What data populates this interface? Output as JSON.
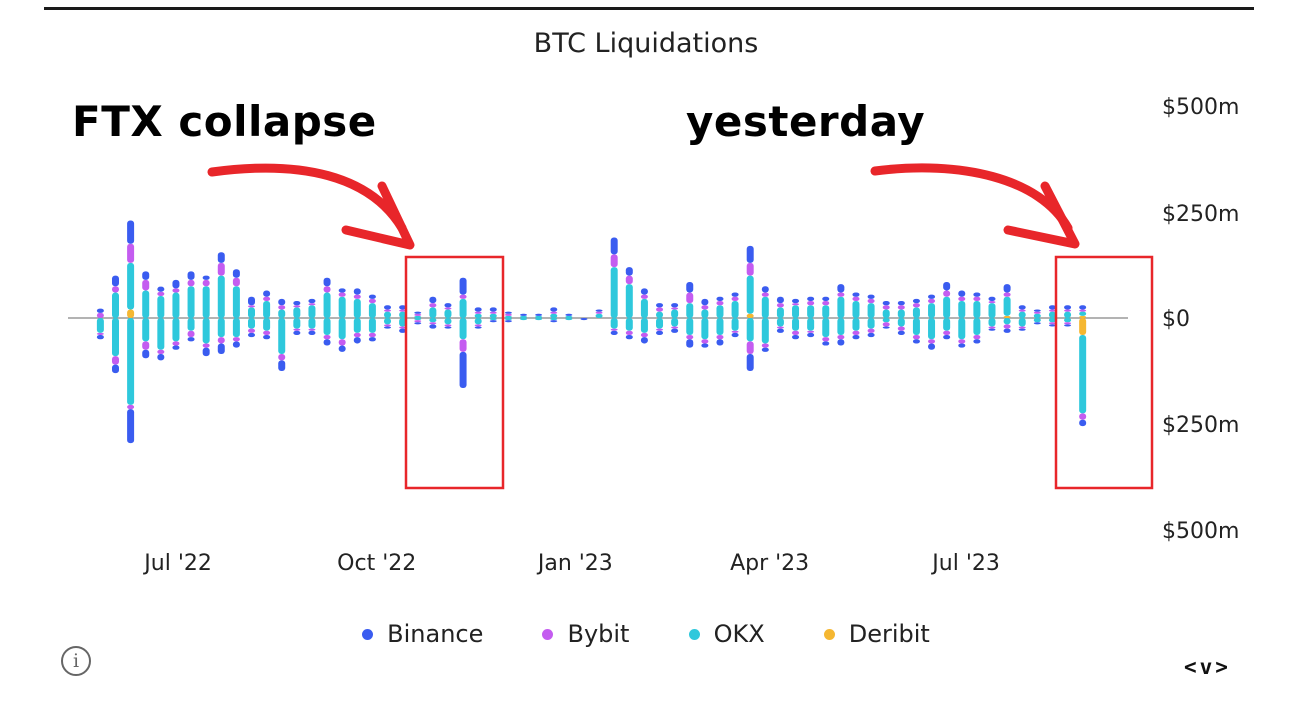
{
  "chart_data": {
    "type": "bar",
    "title": "BTC Liquidations",
    "y_tick_labels": [
      "$500m",
      "$250m",
      "$0",
      "$250m",
      "$500m"
    ],
    "y_ticks": [
      500,
      250,
      0,
      -250,
      -500
    ],
    "ylim": [
      -500,
      500
    ],
    "x_tick_labels": [
      "Jul '22",
      "Oct '22",
      "Jan '23",
      "Apr '23",
      "Jul '23"
    ],
    "x_tick_dates": [
      "2022-07-01",
      "2022-10-01",
      "2023-01-01",
      "2023-04-01",
      "2023-07-01"
    ],
    "xlim": [
      "2022-05-11",
      "2023-09-14"
    ],
    "grid": false,
    "legend_position": "bottom",
    "stacked": true,
    "series": [
      {
        "name": "Binance",
        "color": "#3a5cf0"
      },
      {
        "name": "Bybit",
        "color": "#c45cf0"
      },
      {
        "name": "OKX",
        "color": "#2ec8dc"
      },
      {
        "name": "Deribit",
        "color": "#f5b731"
      }
    ],
    "bars": [
      {
        "date": "2022-05-26",
        "long": [
          10,
          12,
          -5,
          0
        ],
        "short": [
          10,
          5,
          -35,
          0
        ]
      },
      {
        "date": "2022-06-02",
        "long": [
          25,
          15,
          60,
          0
        ],
        "short": [
          20,
          20,
          -90,
          0
        ]
      },
      {
        "date": "2022-06-09",
        "long": [
          55,
          45,
          110,
          20
        ],
        "short": [
          80,
          10,
          -205,
          0
        ]
      },
      {
        "date": "2022-06-16",
        "long": [
          20,
          25,
          65,
          0
        ],
        "short": [
          20,
          20,
          -55,
          0
        ]
      },
      {
        "date": "2022-06-23",
        "long": [
          12,
          10,
          52,
          0
        ],
        "short": [
          15,
          10,
          -75,
          0
        ]
      },
      {
        "date": "2022-06-30",
        "long": [
          20,
          10,
          60,
          0
        ],
        "short": [
          10,
          10,
          -55,
          0
        ]
      },
      {
        "date": "2022-07-07",
        "long": [
          20,
          15,
          75,
          0
        ],
        "short": [
          10,
          15,
          -30,
          0
        ]
      },
      {
        "date": "2022-07-14",
        "long": [
          10,
          15,
          75,
          0
        ],
        "short": [
          20,
          10,
          -60,
          0
        ]
      },
      {
        "date": "2022-07-21",
        "long": [
          25,
          30,
          100,
          0
        ],
        "short": [
          25,
          15,
          -45,
          0
        ]
      },
      {
        "date": "2022-07-28",
        "long": [
          20,
          20,
          75,
          0
        ],
        "short": [
          15,
          10,
          -45,
          0
        ]
      },
      {
        "date": "2022-08-04",
        "long": [
          20,
          5,
          25,
          0
        ],
        "short": [
          10,
          10,
          -25,
          0
        ]
      },
      {
        "date": "2022-08-11",
        "long": [
          15,
          10,
          40,
          0
        ],
        "short": [
          10,
          10,
          -30,
          0
        ]
      },
      {
        "date": "2022-08-18",
        "long": [
          15,
          10,
          20,
          0
        ],
        "short": [
          25,
          15,
          -85,
          0
        ]
      },
      {
        "date": "2022-08-25",
        "long": [
          10,
          5,
          25,
          0
        ],
        "short": [
          10,
          5,
          -25,
          0
        ]
      },
      {
        "date": "2022-09-01",
        "long": [
          10,
          5,
          30,
          0
        ],
        "short": [
          10,
          5,
          -25,
          0
        ]
      },
      {
        "date": "2022-09-08",
        "long": [
          20,
          15,
          60,
          0
        ],
        "short": [
          15,
          10,
          -40,
          0
        ]
      },
      {
        "date": "2022-09-15",
        "long": [
          10,
          10,
          50,
          0
        ],
        "short": [
          15,
          15,
          -50,
          0
        ]
      },
      {
        "date": "2022-09-22",
        "long": [
          15,
          10,
          45,
          0
        ],
        "short": [
          15,
          10,
          -35,
          0
        ]
      },
      {
        "date": "2022-09-29",
        "long": [
          10,
          10,
          35,
          0
        ],
        "short": [
          10,
          10,
          -35,
          0
        ]
      },
      {
        "date": "2022-10-06",
        "long": [
          10,
          5,
          15,
          0
        ],
        "short": [
          5,
          5,
          -15,
          0
        ]
      },
      {
        "date": "2022-10-13",
        "long": [
          10,
          5,
          15,
          0
        ],
        "short": [
          10,
          5,
          -20,
          0
        ]
      },
      {
        "date": "2022-10-20",
        "long": [
          5,
          5,
          5,
          0
        ],
        "short": [
          5,
          5,
          -5,
          0
        ]
      },
      {
        "date": "2022-10-27",
        "long": [
          15,
          10,
          25,
          0
        ],
        "short": [
          10,
          5,
          -10,
          0
        ]
      },
      {
        "date": "2022-11-03",
        "long": [
          10,
          5,
          20,
          0
        ],
        "short": [
          5,
          5,
          -15,
          0
        ]
      },
      {
        "date": "2022-11-10",
        "long": [
          40,
          10,
          45,
          0
        ],
        "short": [
          85,
          30,
          -50,
          0
        ]
      },
      {
        "date": "2022-11-17",
        "long": [
          10,
          5,
          10,
          0
        ],
        "short": [
          5,
          5,
          -15,
          0
        ]
      },
      {
        "date": "2022-11-24",
        "long": [
          10,
          5,
          10,
          0
        ],
        "short": [
          5,
          0,
          -5,
          0
        ]
      },
      {
        "date": "2022-12-01",
        "long": [
          5,
          5,
          5,
          0
        ],
        "short": [
          5,
          0,
          -5,
          0
        ]
      },
      {
        "date": "2022-12-08",
        "long": [
          5,
          0,
          5,
          0
        ],
        "short": [
          0,
          0,
          -5,
          0
        ]
      },
      {
        "date": "2022-12-15",
        "long": [
          5,
          0,
          5,
          0
        ],
        "short": [
          0,
          0,
          -5,
          0
        ]
      },
      {
        "date": "2022-12-22",
        "long": [
          10,
          5,
          10,
          0
        ],
        "short": [
          5,
          0,
          -5,
          0
        ]
      },
      {
        "date": "2022-12-29",
        "long": [
          5,
          0,
          5,
          0
        ],
        "short": [
          0,
          0,
          -5,
          0
        ]
      },
      {
        "date": "2023-01-05",
        "long": [
          0,
          0,
          0,
          0
        ],
        "short": [
          5,
          0,
          0,
          0
        ]
      },
      {
        "date": "2023-01-12",
        "long": [
          5,
          5,
          10,
          0
        ],
        "short": [
          0,
          0,
          0,
          0
        ]
      },
      {
        "date": "2023-01-19",
        "long": [
          40,
          30,
          120,
          0
        ],
        "short": [
          10,
          5,
          -25,
          0
        ]
      },
      {
        "date": "2023-01-26",
        "long": [
          20,
          20,
          80,
          0
        ],
        "short": [
          10,
          10,
          -30,
          0
        ]
      },
      {
        "date": "2023-02-02",
        "long": [
          15,
          10,
          45,
          0
        ],
        "short": [
          15,
          10,
          -35,
          0
        ]
      },
      {
        "date": "2023-02-09",
        "long": [
          10,
          10,
          15,
          0
        ],
        "short": [
          10,
          5,
          -25,
          0
        ]
      },
      {
        "date": "2023-02-16",
        "long": [
          10,
          5,
          20,
          0
        ],
        "short": [
          10,
          5,
          -20,
          0
        ]
      },
      {
        "date": "2023-02-23",
        "long": [
          25,
          25,
          35,
          0
        ],
        "short": [
          20,
          10,
          -40,
          0
        ]
      },
      {
        "date": "2023-03-02",
        "long": [
          15,
          10,
          20,
          0
        ],
        "short": [
          10,
          10,
          -50,
          0
        ]
      },
      {
        "date": "2023-03-09",
        "long": [
          10,
          10,
          30,
          0
        ],
        "short": [
          15,
          10,
          -40,
          0
        ]
      },
      {
        "date": "2023-03-16",
        "long": [
          10,
          10,
          40,
          0
        ],
        "short": [
          10,
          5,
          -30,
          0
        ]
      },
      {
        "date": "2023-03-23",
        "long": [
          40,
          30,
          90,
          10
        ],
        "short": [
          40,
          30,
          -55,
          0
        ]
      },
      {
        "date": "2023-03-30",
        "long": [
          15,
          10,
          50,
          0
        ],
        "short": [
          10,
          10,
          -60,
          0
        ]
      },
      {
        "date": "2023-04-06",
        "long": [
          15,
          10,
          25,
          0
        ],
        "short": [
          10,
          5,
          -20,
          0
        ]
      },
      {
        "date": "2023-04-13",
        "long": [
          10,
          5,
          30,
          0
        ],
        "short": [
          10,
          10,
          -30,
          0
        ]
      },
      {
        "date": "2023-04-20",
        "long": [
          10,
          10,
          30,
          0
        ],
        "short": [
          10,
          5,
          -30,
          0
        ]
      },
      {
        "date": "2023-04-27",
        "long": [
          10,
          10,
          30,
          0
        ],
        "short": [
          10,
          10,
          -45,
          0
        ]
      },
      {
        "date": "2023-05-04",
        "long": [
          20,
          10,
          50,
          0
        ],
        "short": [
          15,
          10,
          -40,
          0
        ]
      },
      {
        "date": "2023-05-11",
        "long": [
          10,
          10,
          40,
          0
        ],
        "short": [
          10,
          10,
          -30,
          0
        ]
      },
      {
        "date": "2023-05-18",
        "long": [
          10,
          10,
          35,
          0
        ],
        "short": [
          10,
          10,
          -25,
          0
        ]
      },
      {
        "date": "2023-05-25",
        "long": [
          10,
          10,
          20,
          0
        ],
        "short": [
          5,
          10,
          -10,
          0
        ]
      },
      {
        "date": "2023-06-01",
        "long": [
          10,
          10,
          20,
          0
        ],
        "short": [
          10,
          10,
          -20,
          0
        ]
      },
      {
        "date": "2023-06-08",
        "long": [
          10,
          10,
          25,
          0
        ],
        "short": [
          10,
          10,
          -40,
          0
        ]
      },
      {
        "date": "2023-06-15",
        "long": [
          10,
          10,
          35,
          0
        ],
        "short": [
          15,
          10,
          -50,
          0
        ]
      },
      {
        "date": "2023-06-22",
        "long": [
          20,
          15,
          50,
          0
        ],
        "short": [
          10,
          10,
          -30,
          0
        ]
      },
      {
        "date": "2023-06-29",
        "long": [
          15,
          10,
          40,
          0
        ],
        "short": [
          10,
          10,
          -50,
          0
        ]
      },
      {
        "date": "2023-07-06",
        "long": [
          10,
          10,
          40,
          0
        ],
        "short": [
          10,
          10,
          -40,
          0
        ]
      },
      {
        "date": "2023-07-13",
        "long": [
          10,
          5,
          35,
          0
        ],
        "short": [
          5,
          5,
          -20,
          0
        ]
      },
      {
        "date": "2023-07-20",
        "long": [
          20,
          10,
          45,
          5
        ],
        "short": [
          10,
          10,
          -15,
          0
        ]
      },
      {
        "date": "2023-07-27",
        "long": [
          10,
          5,
          15,
          0
        ],
        "short": [
          5,
          5,
          -20,
          0
        ]
      },
      {
        "date": "2023-08-03",
        "long": [
          5,
          5,
          10,
          0
        ],
        "short": [
          5,
          0,
          -10,
          0
        ]
      },
      {
        "date": "2023-08-10",
        "long": [
          10,
          5,
          15,
          0
        ],
        "short": [
          5,
          5,
          -10,
          0
        ]
      },
      {
        "date": "2023-08-17",
        "long": [
          10,
          5,
          15,
          0
        ],
        "short": [
          5,
          5,
          -10,
          0
        ]
      },
      {
        "date": "2023-08-24",
        "long": [
          10,
          5,
          10,
          5
        ],
        "short": [
          15,
          15,
          -185,
          -40
        ]
      }
    ]
  },
  "annotations": {
    "ftx": "FTX collapse",
    "yesterday": "yesterday"
  },
  "annotation_colors": {
    "arrow": "#e8262a",
    "box": "#e8262a"
  },
  "icons": {
    "info": "i",
    "nav": "<v>"
  }
}
